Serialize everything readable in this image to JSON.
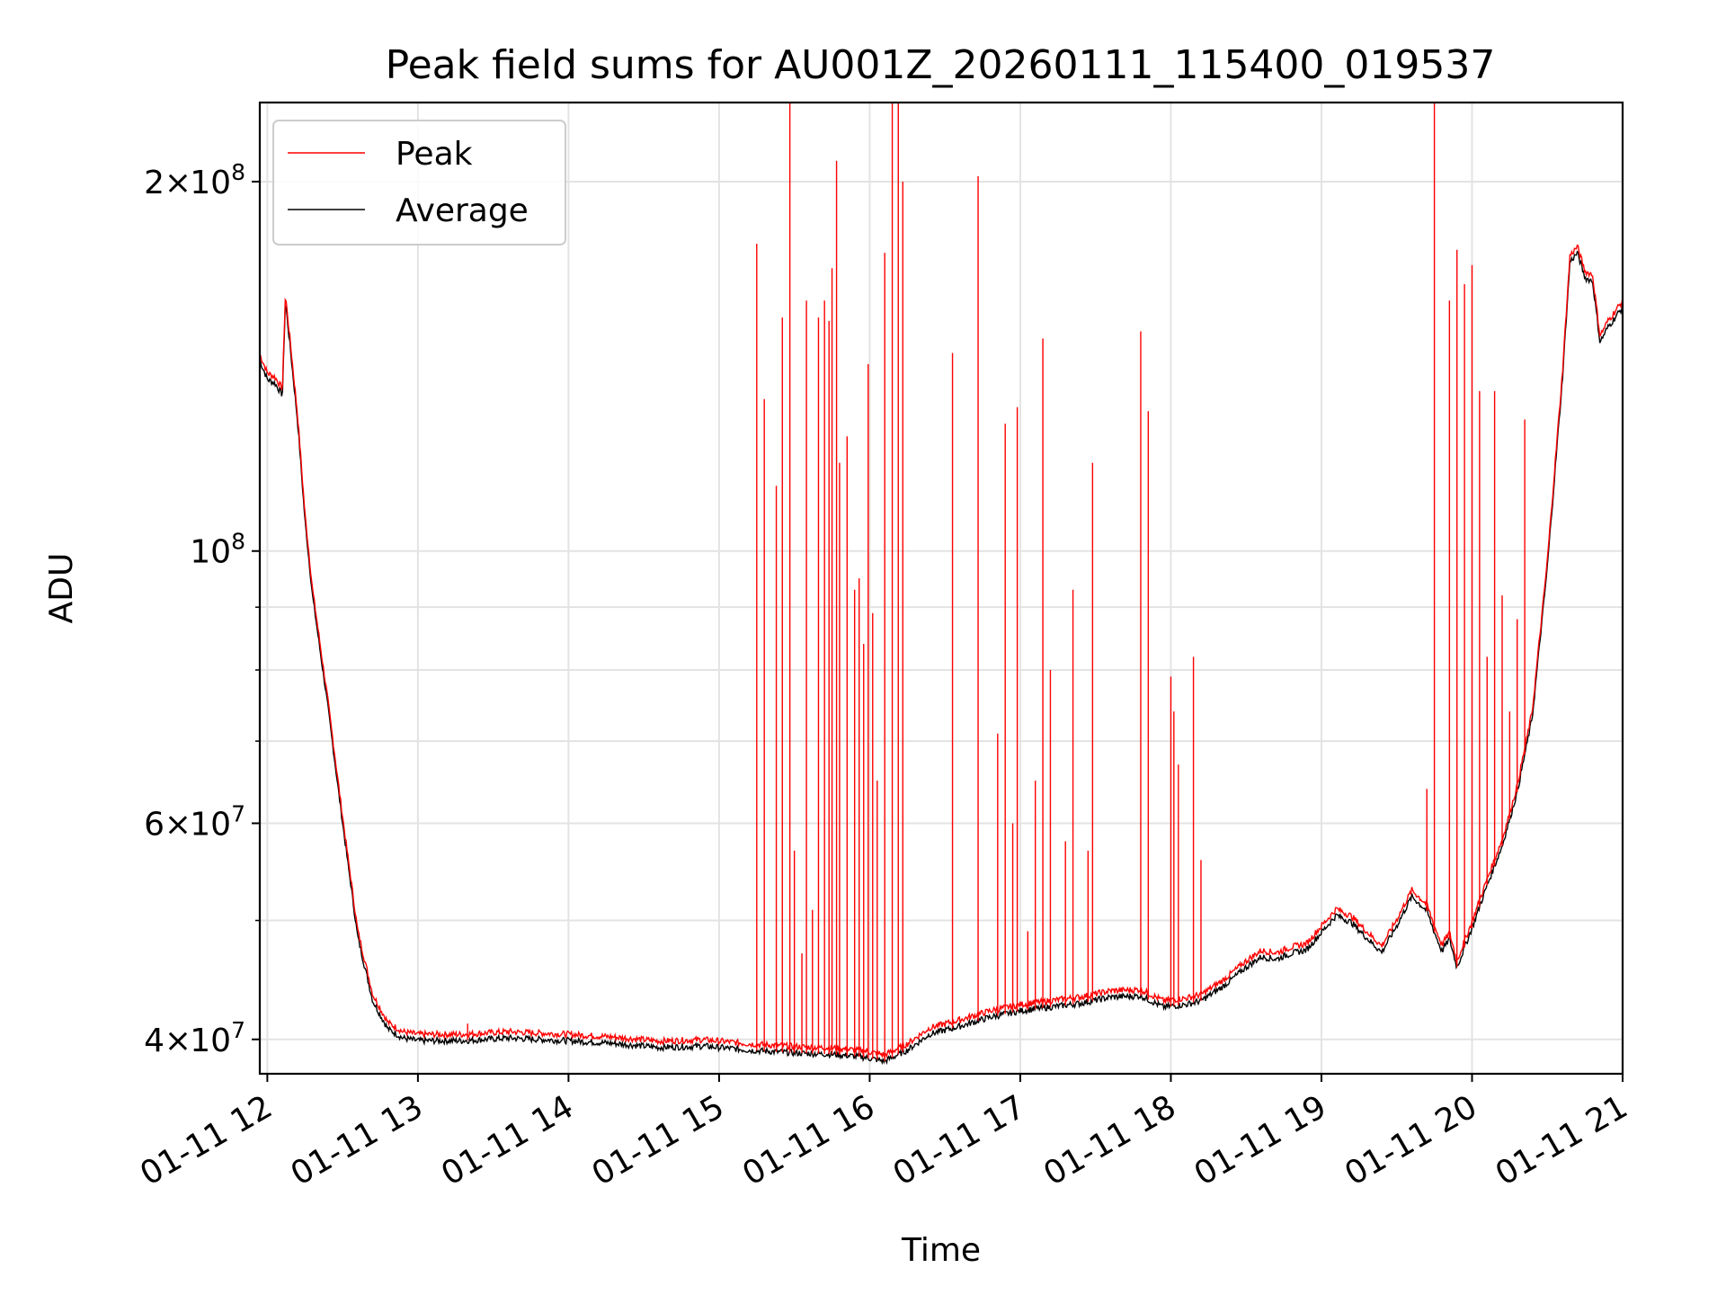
{
  "chart_data": {
    "type": "line",
    "title": "Peak field sums for AU001Z_20260111_115400_019537",
    "xlabel": "Time",
    "ylabel": "ADU",
    "yscale": "log",
    "grid": true,
    "legend_position": "top-left",
    "xlim": [
      11.95,
      21.0
    ],
    "ylim": [
      37500000,
      232000000
    ],
    "x_ticks": [
      {
        "value": 12,
        "label": "01-11 12"
      },
      {
        "value": 13,
        "label": "01-11 13"
      },
      {
        "value": 14,
        "label": "01-11 14"
      },
      {
        "value": 15,
        "label": "01-11 15"
      },
      {
        "value": 16,
        "label": "01-11 16"
      },
      {
        "value": 17,
        "label": "01-11 17"
      },
      {
        "value": 18,
        "label": "01-11 18"
      },
      {
        "value": 19,
        "label": "01-11 19"
      },
      {
        "value": 20,
        "label": "01-11 20"
      },
      {
        "value": 21,
        "label": "01-11 21"
      }
    ],
    "y_ticks": [
      {
        "value": 40000000,
        "mantissa": "4",
        "exponent": "7",
        "times": "×",
        "base": "10"
      },
      {
        "value": 60000000,
        "mantissa": "6",
        "exponent": "7",
        "times": "×",
        "base": "10"
      },
      {
        "value": 100000000,
        "mantissa": "",
        "exponent": "8",
        "times": "",
        "base": "10"
      },
      {
        "value": 200000000,
        "mantissa": "2",
        "exponent": "8",
        "times": "×",
        "base": "10"
      }
    ],
    "y_minor_ticks": [
      50000000,
      70000000,
      80000000,
      90000000
    ],
    "series": [
      {
        "name": "Average",
        "color": "#000000",
        "points": [
          [
            11.95,
            143000000
          ],
          [
            12.0,
            138000000
          ],
          [
            12.05,
            137000000
          ],
          [
            12.1,
            134000000
          ],
          [
            12.12,
            160000000
          ],
          [
            12.2,
            128000000
          ],
          [
            12.25,
            106000000
          ],
          [
            12.3,
            92000000
          ],
          [
            12.4,
            75000000
          ],
          [
            12.5,
            60000000
          ],
          [
            12.6,
            48500000
          ],
          [
            12.7,
            43000000
          ],
          [
            12.8,
            40800000
          ],
          [
            12.9,
            40100000
          ],
          [
            13.0,
            39900000
          ],
          [
            13.3,
            39900000
          ],
          [
            13.6,
            40100000
          ],
          [
            14.0,
            39900000
          ],
          [
            14.3,
            39700000
          ],
          [
            14.6,
            39400000
          ],
          [
            14.9,
            39500000
          ],
          [
            15.2,
            39200000
          ],
          [
            15.5,
            39000000
          ],
          [
            15.75,
            38900000
          ],
          [
            15.95,
            38700000
          ],
          [
            16.1,
            38400000
          ],
          [
            16.25,
            39200000
          ],
          [
            16.4,
            40400000
          ],
          [
            16.6,
            41000000
          ],
          [
            16.8,
            41700000
          ],
          [
            17.0,
            42200000
          ],
          [
            17.2,
            42500000
          ],
          [
            17.4,
            42800000
          ],
          [
            17.6,
            43300000
          ],
          [
            17.8,
            43400000
          ],
          [
            17.95,
            42500000
          ],
          [
            18.1,
            42700000
          ],
          [
            18.2,
            43000000
          ],
          [
            18.35,
            44200000
          ],
          [
            18.5,
            45800000
          ],
          [
            18.6,
            46700000
          ],
          [
            18.7,
            46500000
          ],
          [
            18.8,
            47000000
          ],
          [
            18.9,
            47300000
          ],
          [
            19.0,
            48900000
          ],
          [
            19.1,
            50500000
          ],
          [
            19.2,
            49800000
          ],
          [
            19.3,
            48400000
          ],
          [
            19.4,
            47100000
          ],
          [
            19.5,
            49500000
          ],
          [
            19.6,
            52300000
          ],
          [
            19.7,
            50900000
          ],
          [
            19.75,
            48900000
          ],
          [
            19.8,
            47200000
          ],
          [
            19.85,
            48300000
          ],
          [
            19.9,
            45800000
          ],
          [
            20.0,
            49300000
          ],
          [
            20.1,
            53400000
          ],
          [
            20.2,
            57500000
          ],
          [
            20.3,
            63600000
          ],
          [
            20.4,
            73200000
          ],
          [
            20.5,
            97000000
          ],
          [
            20.6,
            138000000
          ],
          [
            20.65,
            172000000
          ],
          [
            20.7,
            175000000
          ],
          [
            20.75,
            167000000
          ],
          [
            20.8,
            166000000
          ],
          [
            20.85,
            148000000
          ],
          [
            20.9,
            152000000
          ],
          [
            21.0,
            158000000
          ]
        ]
      },
      {
        "name": "Peak",
        "color": "#ff0000",
        "spikes": [
          [
            13.33,
            41200000
          ],
          [
            15.25,
            178000000
          ],
          [
            15.3,
            133000000
          ],
          [
            15.38,
            113000000
          ],
          [
            15.42,
            155000000
          ],
          [
            15.47,
            280000000
          ],
          [
            15.5,
            57000000
          ],
          [
            15.55,
            47000000
          ],
          [
            15.58,
            160000000
          ],
          [
            15.62,
            51000000
          ],
          [
            15.66,
            155000000
          ],
          [
            15.7,
            160000000
          ],
          [
            15.73,
            154000000
          ],
          [
            15.75,
            170000000
          ],
          [
            15.78,
            208000000
          ],
          [
            15.8,
            118000000
          ],
          [
            15.85,
            124000000
          ],
          [
            15.9,
            93000000
          ],
          [
            15.93,
            95000000
          ],
          [
            15.96,
            84000000
          ],
          [
            15.99,
            142000000
          ],
          [
            16.02,
            89000000
          ],
          [
            16.05,
            65000000
          ],
          [
            16.1,
            175000000
          ],
          [
            16.15,
            300000000
          ],
          [
            16.19,
            300000000
          ],
          [
            16.22,
            200000000
          ],
          [
            16.55,
            145000000
          ],
          [
            16.72,
            202000000
          ],
          [
            16.85,
            71000000
          ],
          [
            16.9,
            127000000
          ],
          [
            16.95,
            60000000
          ],
          [
            16.98,
            131000000
          ],
          [
            17.05,
            49000000
          ],
          [
            17.1,
            65000000
          ],
          [
            17.15,
            149000000
          ],
          [
            17.2,
            80000000
          ],
          [
            17.3,
            58000000
          ],
          [
            17.35,
            93000000
          ],
          [
            17.45,
            57000000
          ],
          [
            17.48,
            118000000
          ],
          [
            17.8,
            151000000
          ],
          [
            17.85,
            130000000
          ],
          [
            18.0,
            79000000
          ],
          [
            18.02,
            74000000
          ],
          [
            18.05,
            67000000
          ],
          [
            18.15,
            82000000
          ],
          [
            18.2,
            56000000
          ],
          [
            19.7,
            64000000
          ],
          [
            19.75,
            280000000
          ],
          [
            19.85,
            160000000
          ],
          [
            19.9,
            176000000
          ],
          [
            19.95,
            165000000
          ],
          [
            20.0,
            171000000
          ],
          [
            20.05,
            135000000
          ],
          [
            20.1,
            82000000
          ],
          [
            20.15,
            135000000
          ],
          [
            20.2,
            92000000
          ],
          [
            20.25,
            74000000
          ],
          [
            20.3,
            88000000
          ],
          [
            20.35,
            128000000
          ]
        ]
      }
    ]
  }
}
